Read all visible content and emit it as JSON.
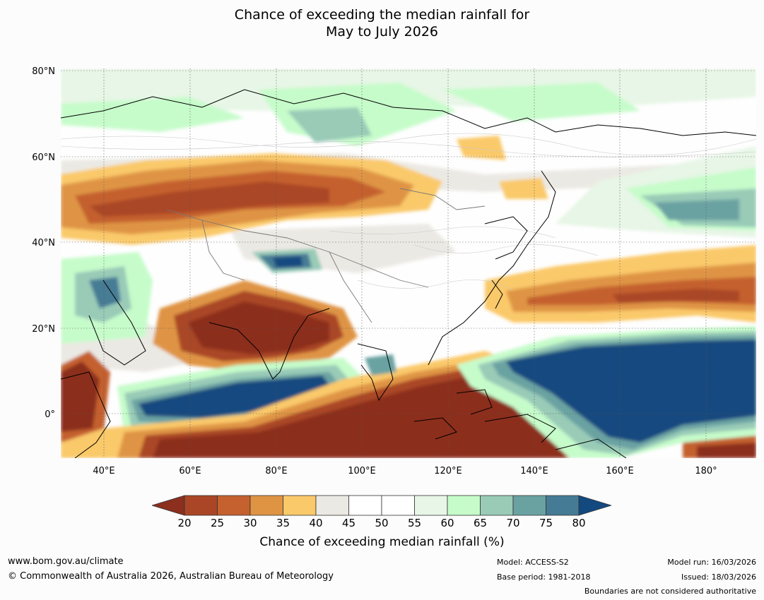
{
  "title": {
    "line1": "Chance of exceeding the median rainfall for",
    "line2": "May to July 2026"
  },
  "map": {
    "lat_labels": [
      "80°N",
      "60°N",
      "40°N",
      "20°N",
      "0°"
    ],
    "lon_labels": [
      "40°E",
      "60°E",
      "80°E",
      "100°E",
      "120°E",
      "140°E",
      "160°E",
      "180°"
    ],
    "lon_values": [
      40,
      60,
      80,
      100,
      120,
      140,
      160,
      180
    ],
    "lat_values": [
      80,
      60,
      40,
      20,
      0
    ],
    "extent": {
      "lon_min": 30,
      "lon_max": 191.5,
      "lat_min": -10.5,
      "lat_max": 80.5
    }
  },
  "colorbar": {
    "ticks": [
      "20",
      "25",
      "30",
      "35",
      "40",
      "45",
      "50",
      "55",
      "60",
      "65",
      "70",
      "75",
      "80"
    ],
    "colors": [
      "#8c2f1e",
      "#aa4626",
      "#c4612f",
      "#df9444",
      "#fac96a",
      "#ebe9e3",
      "#ffffff",
      "#ffffff",
      "#e7f6e6",
      "#c6fcca",
      "#99cbb7",
      "#6aa2a2",
      "#467b95",
      "#13497f"
    ],
    "label": "Chance of exceeding median rainfall (%)"
  },
  "footer": {
    "website": "www.bom.gov.au/climate",
    "copyright": "© Commonwealth of Australia 2026, Australian Bureau of Meteorology",
    "model": "Model: ACCESS-S2",
    "base_period": "Base period: 1981-2018",
    "model_run": "Model run: 16/03/2026",
    "issued": "Issued: 18/03/2026",
    "disclaimer": "Boundaries are not considered authoritative"
  }
}
